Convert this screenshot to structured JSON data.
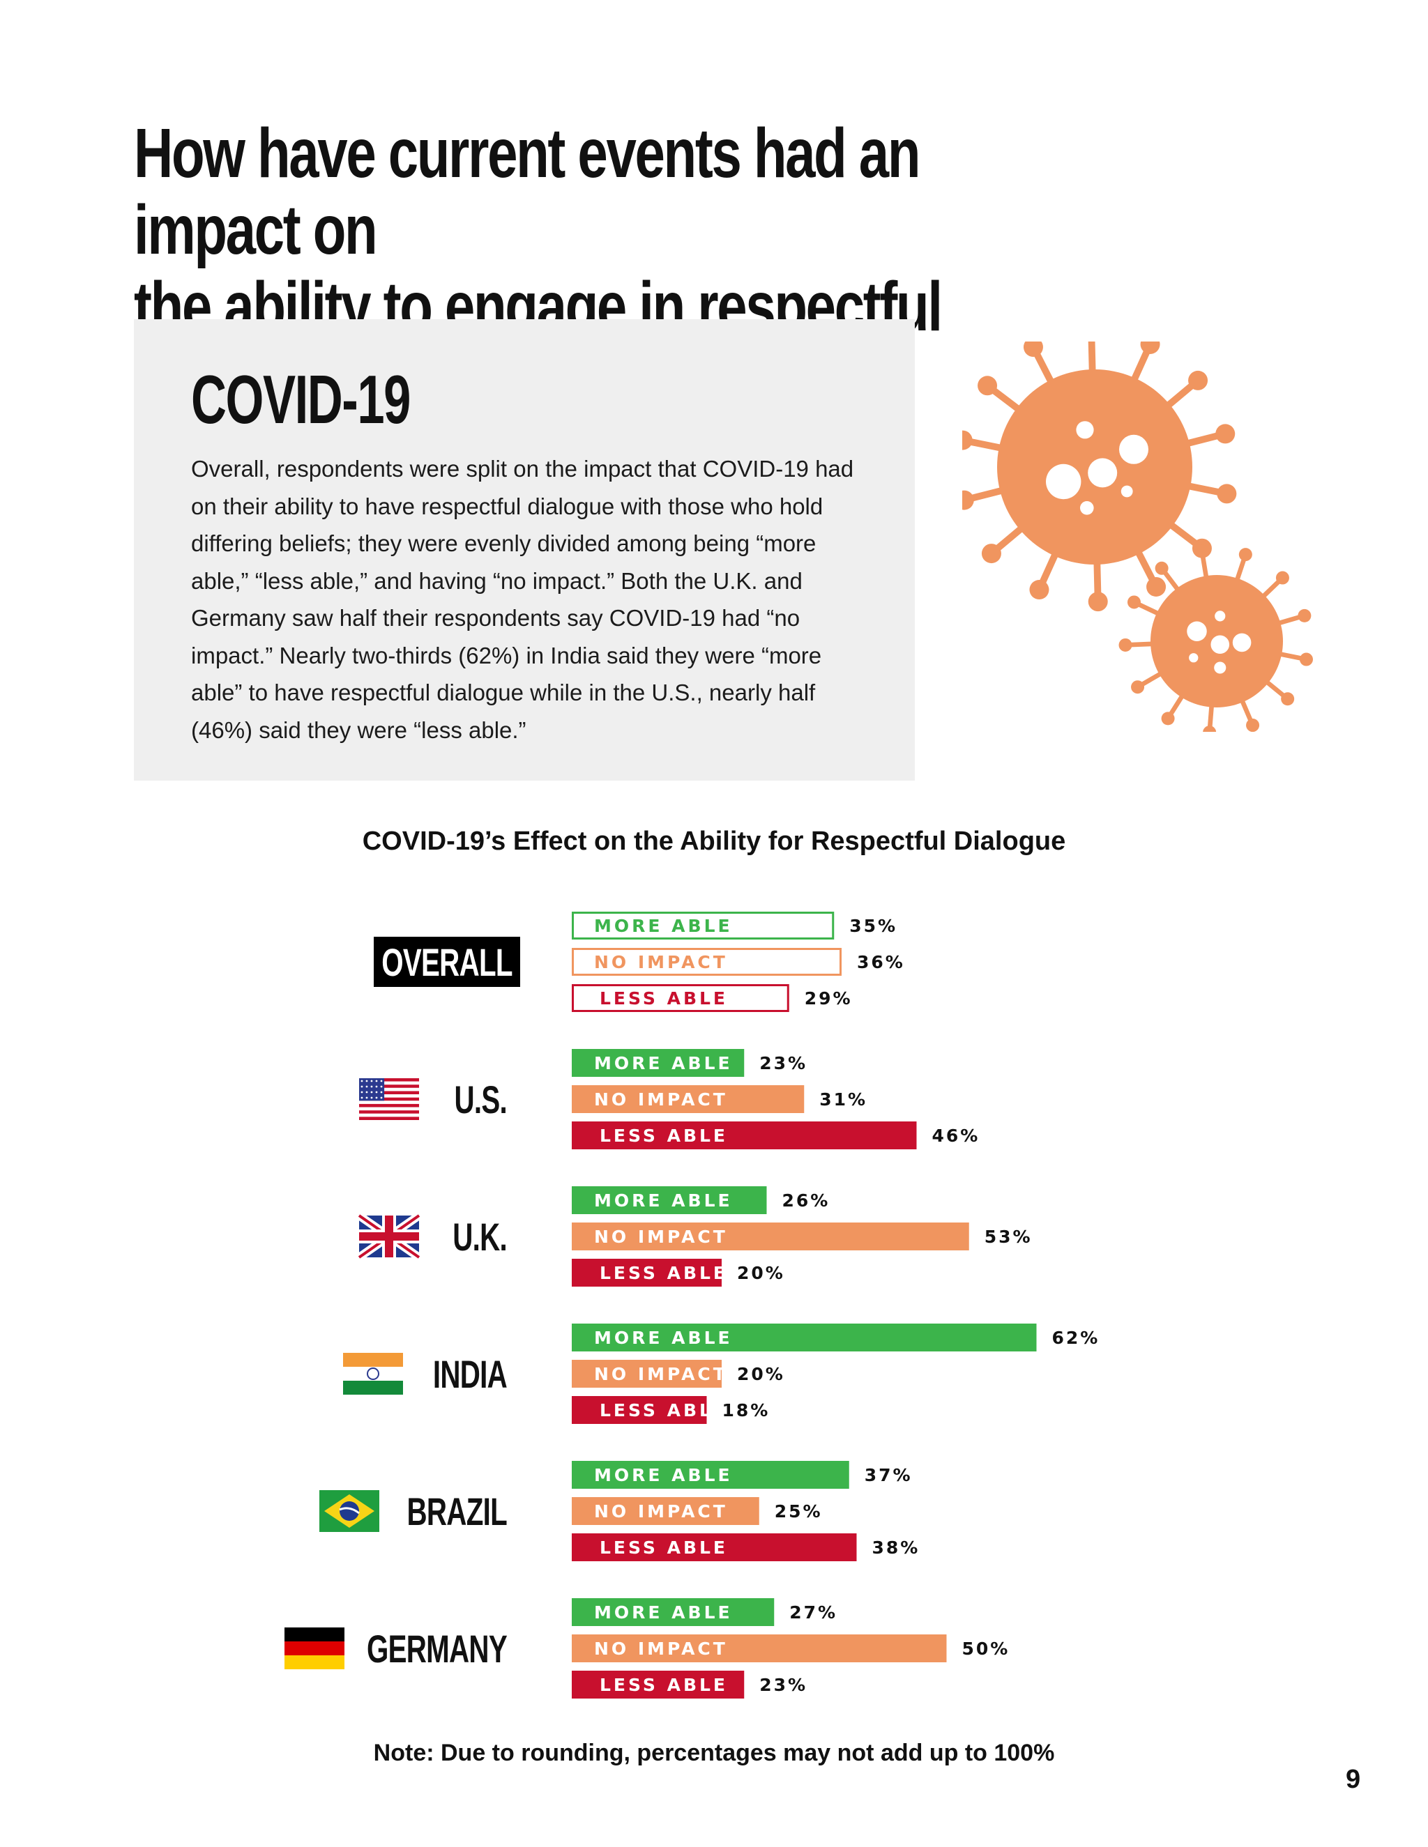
{
  "headline": {
    "line1": "How have current events had an impact on",
    "line2": "the ability to engage in respectful dialogue?"
  },
  "info_box": {
    "title": "COVID-19",
    "body": "Overall, respondents were split on the impact that COVID-19 had on their ability to have respectful dialogue with those who hold differing beliefs; they were evenly divided among being “more able,” “less able,” and having “no impact.” Both the U.K. and Germany saw half their respondents say COVID-19 had “no impact.” Nearly two-thirds (62%) in India said they were “more able” to have respectful dialogue while in the U.S., nearly half (46%) said they were “less able.”"
  },
  "icons": {
    "virus": "virus-icon",
    "flags": [
      "us-flag-icon",
      "uk-flag-icon",
      "india-flag-icon",
      "brazil-flag-icon",
      "germany-flag-icon"
    ]
  },
  "colors": {
    "more_able": "#3cb44b",
    "no_impact": "#f0955f",
    "less_able": "#c8102e",
    "virus": "#f0955f"
  },
  "chart_data": {
    "type": "bar",
    "orientation": "horizontal",
    "title": "COVID-19’s Effect on the Ability for Respectful Dialogue",
    "categories": [
      "OVERALL",
      "U.S.",
      "U.K.",
      "INDIA",
      "BRAZIL",
      "GERMANY"
    ],
    "series": [
      {
        "name": "MORE ABLE",
        "values": [
          35,
          23,
          26,
          62,
          37,
          27
        ]
      },
      {
        "name": "NO IMPACT",
        "values": [
          36,
          31,
          53,
          20,
          25,
          50
        ]
      },
      {
        "name": "LESS ABLE",
        "values": [
          29,
          46,
          20,
          18,
          38,
          23
        ]
      }
    ],
    "value_suffix": "%",
    "overall_style": "outlined"
  },
  "note": "Note: Due to rounding, percentages may not add up to 100%",
  "page_number": "9"
}
